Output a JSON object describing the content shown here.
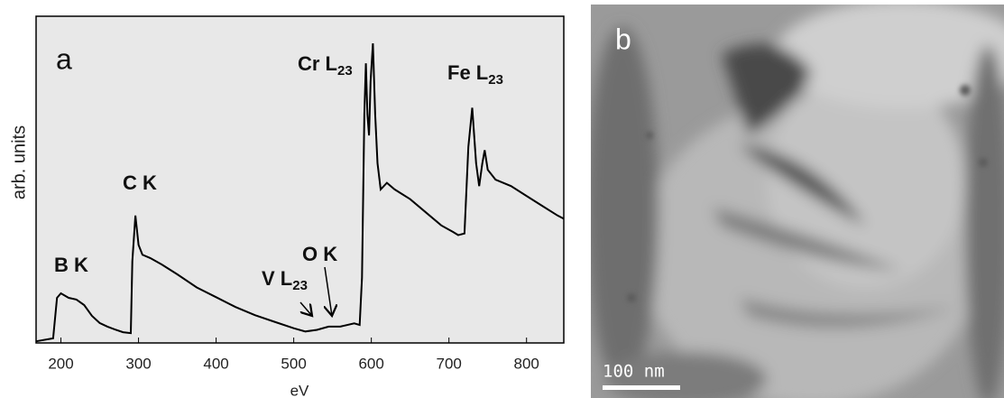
{
  "chart_data": {
    "type": "line",
    "panel_label": "a",
    "xlabel": "eV",
    "ylabel": "arb. units",
    "color": "#000000",
    "background": "#e8e8e8",
    "xlim": [
      168,
      848
    ],
    "xticks": [
      200,
      300,
      400,
      500,
      600,
      700,
      800
    ],
    "ylim": [
      0,
      100
    ],
    "x": [
      168,
      190,
      195,
      200,
      210,
      220,
      230,
      240,
      250,
      260,
      270,
      280,
      290,
      292,
      296,
      300,
      305,
      315,
      330,
      350,
      375,
      400,
      425,
      450,
      475,
      500,
      515,
      530,
      545,
      560,
      578,
      585,
      588,
      591,
      593,
      595,
      597,
      599,
      602,
      605,
      608,
      612,
      620,
      630,
      650,
      670,
      690,
      705,
      712,
      720,
      725,
      730,
      735,
      739,
      743,
      746,
      750,
      760,
      780,
      800,
      820,
      840,
      848
    ],
    "values": [
      0.5,
      1.4,
      13.8,
      15.2,
      13.8,
      13.3,
      11.6,
      8.3,
      6.1,
      5,
      4.1,
      3.3,
      3,
      25,
      39,
      30,
      27,
      26,
      24,
      21,
      17,
      14,
      11,
      8.5,
      6.5,
      4.5,
      3.5,
      4,
      5,
      5,
      6,
      5.5,
      20,
      70,
      85.6,
      70,
      63.5,
      80,
      91.7,
      70,
      55,
      47,
      49,
      47,
      44,
      40,
      36,
      34,
      33,
      33.5,
      60,
      72,
      55,
      48,
      55,
      59,
      53,
      50,
      48,
      45,
      42,
      39,
      38
    ],
    "annotations": [
      {
        "text": "B K"
      },
      {
        "text": "C K"
      },
      {
        "text": "V L",
        "sub": "23"
      },
      {
        "text": "O K"
      },
      {
        "text": "Cr L",
        "sub": "23"
      },
      {
        "text": "Fe L",
        "sub": "23"
      }
    ]
  },
  "image_panel": {
    "label": "b",
    "scale_bar": "100 nm"
  }
}
